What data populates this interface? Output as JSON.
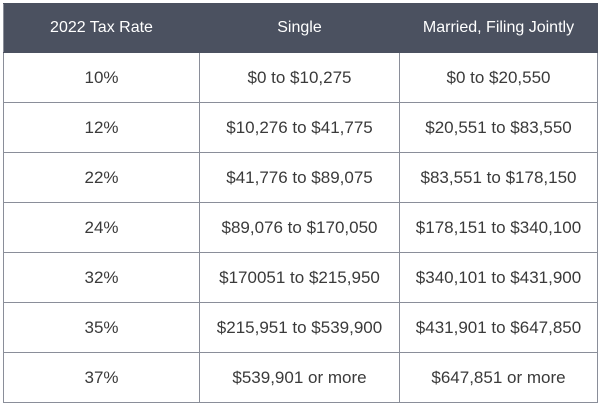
{
  "table": {
    "headers": [
      "2022 Tax Rate",
      "Single",
      "Married, Filing Jointly"
    ],
    "rows": [
      [
        "10%",
        "$0 to $10,275",
        "$0 to $20,550"
      ],
      [
        "12%",
        "$10,276 to $41,775",
        "$20,551 to $83,550"
      ],
      [
        "22%",
        "$41,776 to $89,075",
        "$83,551 to $178,150"
      ],
      [
        "24%",
        "$89,076 to $170,050",
        "$178,151 to $340,100"
      ],
      [
        "32%",
        "$170051 to $215,950",
        "$340,101 to $431,900"
      ],
      [
        "35%",
        "$215,951 to $539,900",
        "$431,901 to $647,850"
      ],
      [
        "37%",
        "$539,901 or more",
        "$647,851 or more"
      ]
    ]
  },
  "colors": {
    "header_background": "#4b5160",
    "header_text": "#ffffff",
    "cell_text": "#3a3a3a",
    "grid_lines": "#8a8e99"
  }
}
